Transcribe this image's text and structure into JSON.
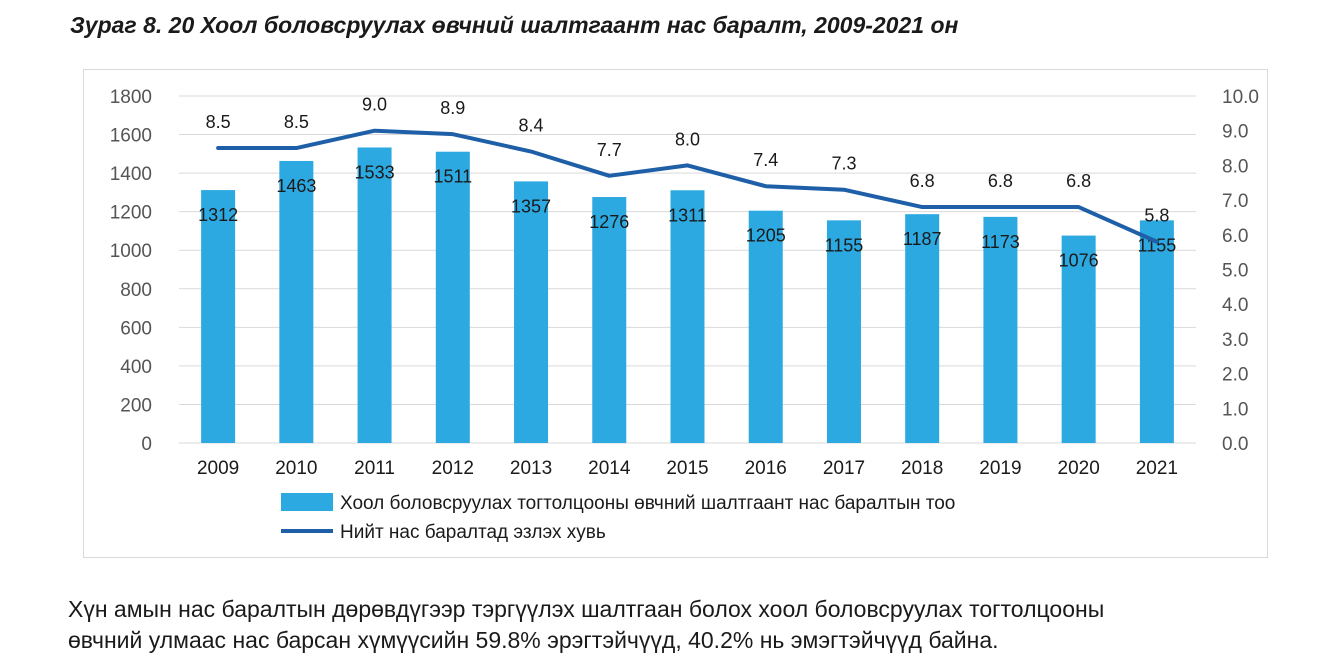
{
  "figure_title": "Зураг 8. 20 Хоол боловсруулах өвчний шалтгаант нас баралт, 2009-2021 он",
  "caption_lines": [
    "Хүн амын нас баралтын дөрөвдүгээр тэргүүлэх шалтгаан болох хоол боловсруулах тогтолцооны",
    "өвчний улмаас нас барсан хүмүүсийн 59.8% эрэгтэйчүүд, 40.2% нь эмэгтэйчүүд байна."
  ],
  "colors": {
    "bar": "#2da9e1",
    "line": "#1f5fa8",
    "grid": "#d9d9d9",
    "axis_text": "#555555",
    "label_text": "#1a1a1a"
  },
  "chart_data": {
    "type": "bar",
    "title": "Зураг 8. 20 Хоол боловсруулах өвчний шалтгаант нас баралт, 2009-2021 он",
    "categories": [
      "2009",
      "2010",
      "2011",
      "2012",
      "2013",
      "2014",
      "2015",
      "2016",
      "2017",
      "2018",
      "2019",
      "2020",
      "2021"
    ],
    "series": [
      {
        "name": "Хоол боловсруулах тогтолцооны өвчний шалтгаант нас баралтын тоо",
        "type": "bar",
        "axis": "left",
        "values": [
          1312,
          1463,
          1533,
          1511,
          1357,
          1276,
          1311,
          1205,
          1155,
          1187,
          1173,
          1076,
          1155
        ],
        "labels": [
          "1312",
          "1463",
          "1533",
          "1511",
          "1357",
          "1276",
          "1311",
          "1205",
          "1155",
          "1187",
          "1173",
          "1076",
          "1155"
        ]
      },
      {
        "name": "Нийт нас баралтад эзлэх хувь",
        "type": "line",
        "axis": "right",
        "values": [
          8.5,
          8.5,
          9.0,
          8.9,
          8.4,
          7.7,
          8.0,
          7.4,
          7.3,
          6.8,
          6.8,
          6.8,
          5.8
        ],
        "labels": [
          "8.5",
          "8.5",
          "9.0",
          "8.9",
          "8.4",
          "7.7",
          "8.0",
          "7.4",
          "7.3",
          "6.8",
          "6.8",
          "6.8",
          "5.8"
        ]
      }
    ],
    "y_left": {
      "min": 0,
      "max": 1800,
      "ticks": [
        "0",
        "200",
        "400",
        "600",
        "800",
        "1000",
        "1200",
        "1400",
        "1600",
        "1800"
      ]
    },
    "y_right": {
      "min": 0,
      "max": 10,
      "ticks": [
        "0.0",
        "1.0",
        "2.0",
        "3.0",
        "4.0",
        "5.0",
        "6.0",
        "7.0",
        "8.0",
        "9.0",
        "10.0"
      ]
    },
    "grid": true,
    "legend_position": "bottom"
  }
}
